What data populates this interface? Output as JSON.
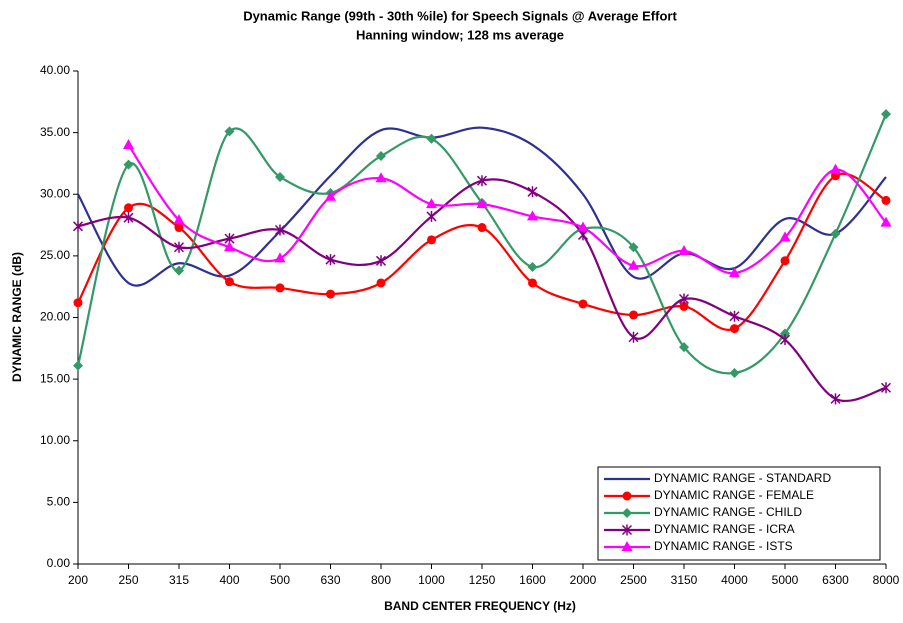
{
  "chart_data": {
    "type": "line",
    "title": "Dynamic Range (99th - 30th %ile) for Speech Signals @ Average Effort",
    "subtitle": "Hanning window; 128 ms average",
    "x_label": "BAND CENTER FREQUENCY (Hz)",
    "y_label": "DYNAMIC RANGE (dB)",
    "categories": [
      "200",
      "250",
      "315",
      "400",
      "500",
      "630",
      "800",
      "1000",
      "1250",
      "1600",
      "2000",
      "2500",
      "3150",
      "4000",
      "5000",
      "6300",
      "8000"
    ],
    "ylim": [
      0,
      40
    ],
    "yticks": [
      {
        "value": 0,
        "label": "0.00"
      },
      {
        "value": 5,
        "label": "5.00"
      },
      {
        "value": 10,
        "label": "10.00"
      },
      {
        "value": 15,
        "label": "15.00"
      },
      {
        "value": 20,
        "label": "20.00"
      },
      {
        "value": 25,
        "label": "25.00"
      },
      {
        "value": 30,
        "label": "30.00"
      },
      {
        "value": 35,
        "label": "35.00"
      },
      {
        "value": 40,
        "label": "40.00"
      }
    ],
    "grid": false,
    "legend": "lower right",
    "series": [
      {
        "name": "DYNAMIC RANGE - STANDARD",
        "color": "#2e3192",
        "marker": "none",
        "values": [
          30.0,
          22.8,
          24.4,
          23.4,
          27.0,
          31.5,
          35.2,
          34.6,
          35.4,
          34.0,
          30.0,
          23.3,
          25.2,
          24.0,
          28.0,
          26.8,
          31.4
        ]
      },
      {
        "name": "DYNAMIC RANGE - FEMALE",
        "color": "#ff0000",
        "marker": "circle",
        "values": [
          21.2,
          28.9,
          27.3,
          22.9,
          22.4,
          21.9,
          22.8,
          26.3,
          27.3,
          22.8,
          21.1,
          20.2,
          20.9,
          19.1,
          24.6,
          31.5,
          29.5
        ]
      },
      {
        "name": "DYNAMIC RANGE - CHILD",
        "color": "#339966",
        "marker": "diamond",
        "values": [
          16.1,
          32.4,
          23.8,
          35.1,
          31.4,
          30.1,
          33.1,
          34.5,
          29.3,
          24.1,
          27.2,
          25.7,
          17.6,
          15.5,
          18.7,
          26.8,
          36.5
        ]
      },
      {
        "name": "DYNAMIC RANGE - ICRA",
        "color": "#800080",
        "marker": "star",
        "values": [
          27.4,
          28.1,
          25.7,
          26.4,
          27.1,
          24.7,
          24.6,
          28.2,
          31.1,
          30.2,
          26.7,
          18.4,
          21.5,
          20.1,
          18.2,
          13.4,
          14.3
        ]
      },
      {
        "name": "DYNAMIC RANGE - ISTS",
        "color": "#ff00ff",
        "marker": "triangle",
        "values": [
          null,
          34.0,
          27.9,
          25.7,
          24.8,
          29.8,
          31.3,
          29.2,
          29.2,
          28.2,
          27.3,
          24.2,
          25.4,
          23.6,
          26.5,
          32.0,
          27.7
        ]
      }
    ]
  }
}
